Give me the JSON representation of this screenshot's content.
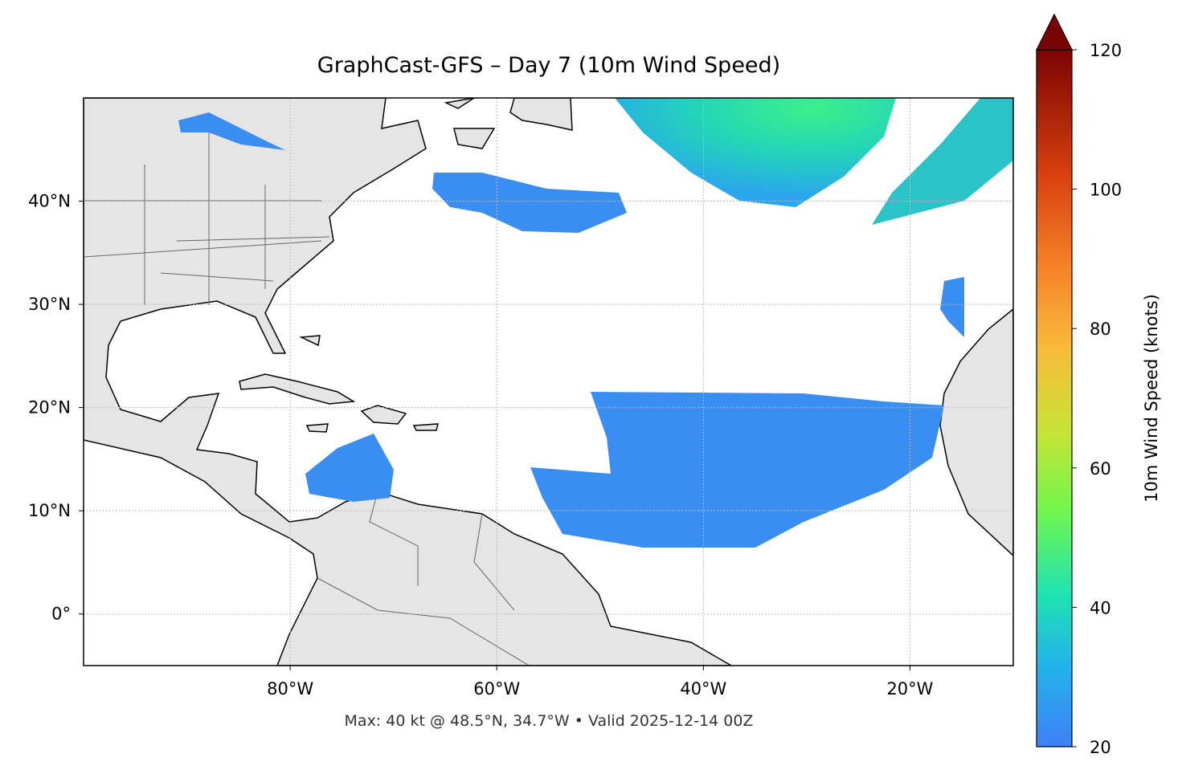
{
  "map": {
    "title": "GraphCast-GFS – Day 7 (10m Wind Speed)",
    "xlim": [
      -100,
      -10
    ],
    "ylim": [
      -5,
      50
    ],
    "xticks": [
      {
        "value": -80,
        "label": "80°W"
      },
      {
        "value": -60,
        "label": "60°W"
      },
      {
        "value": -40,
        "label": "40°W"
      },
      {
        "value": -20,
        "label": "20°W"
      }
    ],
    "yticks": [
      {
        "value": 40,
        "label": "40°N"
      },
      {
        "value": 30,
        "label": "30°N"
      },
      {
        "value": 20,
        "label": "20°N"
      },
      {
        "value": 10,
        "label": "10°N"
      },
      {
        "value": 0,
        "label": "0°"
      }
    ],
    "grid": true,
    "annotation": "Max: 40 kt @ 48.5°N, 34.7°W • Valid 2025-12-14 00Z",
    "colorbar": {
      "label": "10m Wind Speed (knots)",
      "lim": [
        20,
        120
      ],
      "ticks": [
        20,
        40,
        60,
        80,
        100,
        120
      ],
      "extend": "max"
    }
  }
}
